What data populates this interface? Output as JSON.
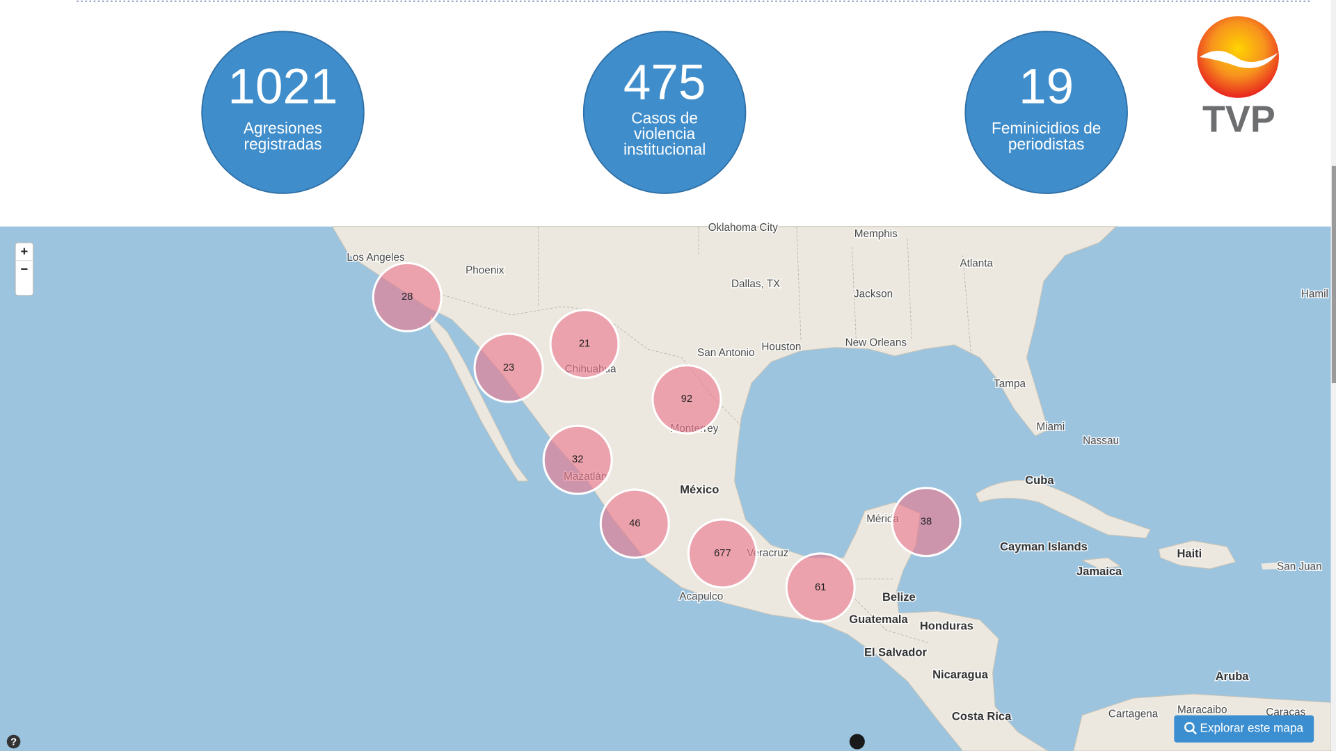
{
  "header": {
    "stats": [
      {
        "value": "1021",
        "label_lines": [
          "Agresiones",
          "registradas"
        ]
      },
      {
        "value": "475",
        "label_lines": [
          "Casos de",
          "violencia",
          "institucional"
        ]
      },
      {
        "value": "19",
        "label_lines": [
          "Feminicidios de",
          "periodistas"
        ]
      }
    ],
    "logo": "TVP"
  },
  "map": {
    "zoom_in": "+",
    "zoom_out": "−",
    "help": "?",
    "explore_button": "Explorar este mapa",
    "place_labels": [
      "Oklahoma City",
      "Memphis",
      "Los Angeles",
      "Phoenix",
      "Atlanta",
      "Dallas, TX",
      "Jackson",
      "Hamil",
      "San Antonio",
      "Houston",
      "New Orleans",
      "Chihuahua",
      "Tampa",
      "Monterrey",
      "Miami",
      "Nassau",
      "Cuba",
      "Mazatlán",
      "México",
      "Mérida",
      "Cayman Islands",
      "Haiti",
      "San Juan",
      "Jamaica",
      "Veracruz",
      "Acapulco",
      "Belize",
      "Guatemala",
      "Honduras",
      "El Salvador",
      "Nicaragua",
      "Aruba",
      "Costa Rica",
      "Cartagena",
      "Maracaibo",
      "Caracas"
    ],
    "clusters": [
      "28",
      "23",
      "21",
      "92",
      "32",
      "46",
      "677",
      "61",
      "38"
    ]
  }
}
